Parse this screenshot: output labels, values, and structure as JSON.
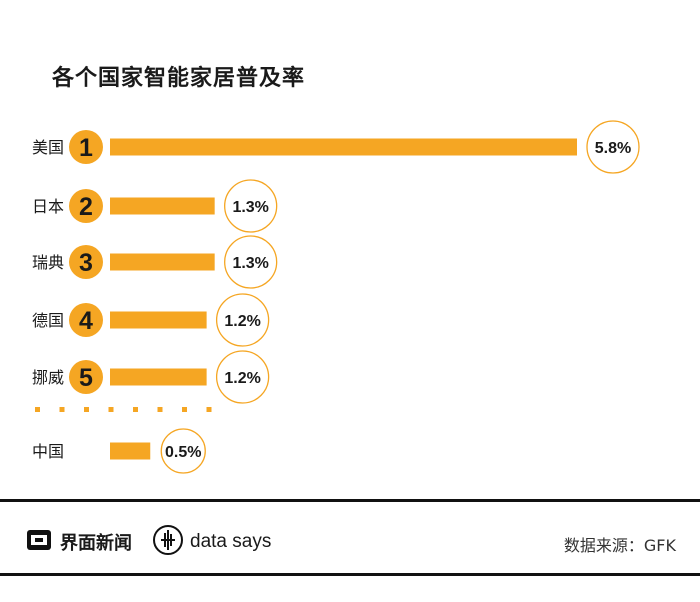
{
  "title": "各个国家智能家居普及率",
  "colors": {
    "bar": "#F5A623",
    "circle_stroke": "#F5A623",
    "text": "#1a1a1a"
  },
  "chart_data": {
    "type": "bar",
    "orientation": "horizontal",
    "title": "各个国家智能家居普及率",
    "unit": "%",
    "ranked": [
      {
        "country": "美国",
        "rank": "1",
        "value": 5.8,
        "label": "5.8%"
      },
      {
        "country": "日本",
        "rank": "2",
        "value": 1.3,
        "label": "1.3%"
      },
      {
        "country": "瑞典",
        "rank": "3",
        "value": 1.3,
        "label": "1.3%"
      },
      {
        "country": "德国",
        "rank": "4",
        "value": 1.2,
        "label": "1.2%"
      },
      {
        "country": "挪威",
        "rank": "5",
        "value": 1.2,
        "label": "1.2%"
      }
    ],
    "extra": {
      "country": "中国",
      "value": 0.5,
      "label": "0.5%"
    },
    "xlim": [
      0,
      5.8
    ]
  },
  "footer": {
    "brand": "界面新闻",
    "brand_icon": "jiemian-logo-icon",
    "datasays": "data says",
    "datasays_icon": "data-says-logo-icon",
    "source": "数据来源：GFK"
  }
}
